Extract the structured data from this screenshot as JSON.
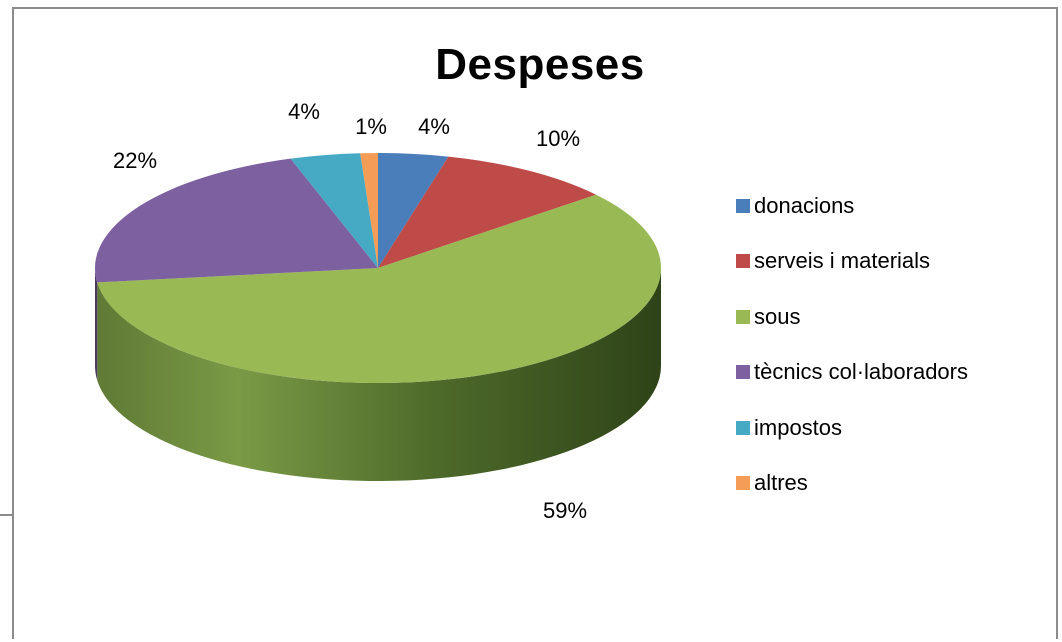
{
  "chart_data": {
    "type": "pie",
    "title": "Despeses",
    "categories": [
      "donacions",
      "serveis i materials",
      "sous",
      "tècnics col·laboradors",
      "impostos",
      "altres"
    ],
    "values": [
      4,
      10,
      59,
      22,
      4,
      1
    ],
    "labels": [
      "4%",
      "10%",
      "59%",
      "22%",
      "4%",
      "1%"
    ],
    "colors": [
      "#4a7ebb",
      "#be4b48",
      "#98b954",
      "#7d60a0",
      "#46aac5",
      "#f59d56"
    ],
    "legend_position": "right",
    "style": "3d"
  }
}
